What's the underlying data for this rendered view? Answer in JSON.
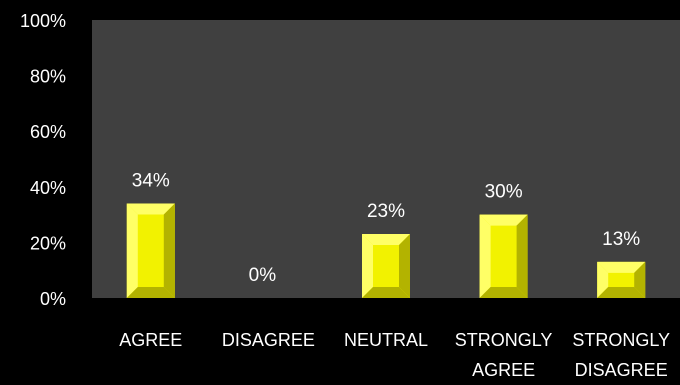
{
  "chart_data": {
    "type": "bar",
    "categories": [
      [
        "AGREE"
      ],
      [
        "DISAGREE"
      ],
      [
        "NEUTRAL"
      ],
      [
        "STRONGLY",
        "AGREE"
      ],
      [
        "STRONGLY",
        "DISAGREE"
      ]
    ],
    "values": [
      34,
      0,
      23,
      30,
      13
    ],
    "data_labels": [
      "34%",
      "0%",
      "23%",
      "30%",
      "13%"
    ],
    "y_ticks": [
      "0%",
      "20%",
      "40%",
      "60%",
      "80%",
      "100%"
    ],
    "ylim": [
      0,
      100
    ],
    "grid": false,
    "legend": "none",
    "colors": {
      "background": "#000000",
      "plot_area": "#404040",
      "bar": "#f2f200",
      "bar_dark": "#b3b300",
      "bar_light": "#ffff66",
      "text": "#ffffff"
    }
  }
}
